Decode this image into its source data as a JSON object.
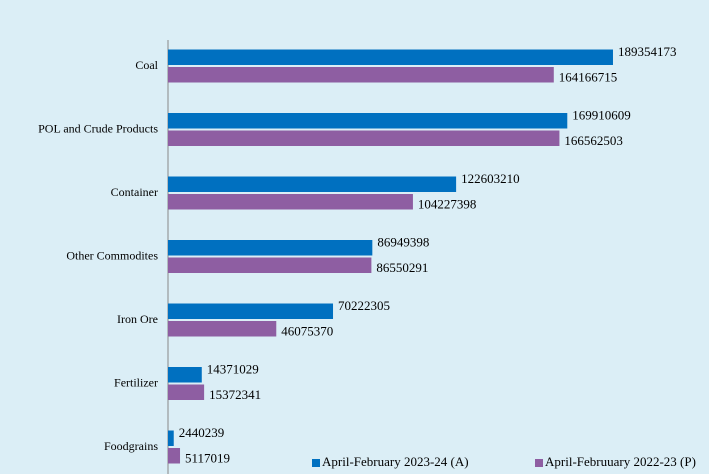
{
  "chart_data": {
    "type": "hbar",
    "categories": [
      "Coal",
      "POL and Crude Products",
      "Container",
      "Other Commodites",
      "Iron Ore",
      "Fertilizer",
      "Foodgrains"
    ],
    "series": [
      {
        "name": "April-February 2023-24 (A)",
        "color": "#0070c0",
        "values": [
          189354173,
          169910609,
          122603210,
          86949398,
          70222305,
          14371029,
          2440239
        ]
      },
      {
        "name": "April-Februuary 2022-23 (P)",
        "color": "#8e5ea2",
        "values": [
          164166715,
          166562503,
          104227398,
          86550291,
          46075370,
          15372341,
          5117019
        ]
      }
    ],
    "xlim": [
      0,
      200000000
    ],
    "legend": "bottom-right"
  }
}
